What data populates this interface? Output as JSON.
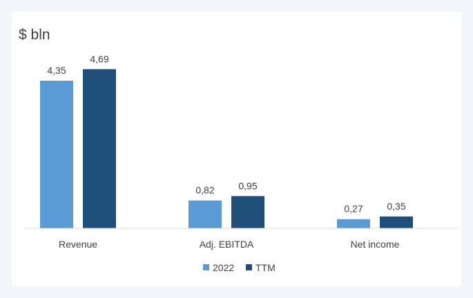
{
  "chart_data": {
    "type": "bar",
    "unit_label": "$ bln",
    "categories": [
      "Revenue",
      "Adj. EBITDA",
      "Net income"
    ],
    "series": [
      {
        "name": "2022",
        "values": [
          4.35,
          0.82,
          0.27
        ],
        "labels": [
          "4,35",
          "0,82",
          "0,27"
        ],
        "color": "#5b9bd5"
      },
      {
        "name": "TTM",
        "values": [
          4.69,
          0.95,
          0.35
        ],
        "labels": [
          "4,69",
          "0,95",
          "0,35"
        ],
        "color": "#1f4e79"
      }
    ],
    "ylim": [
      0,
      5
    ],
    "grid": false,
    "legend_position": "bottom-center"
  }
}
